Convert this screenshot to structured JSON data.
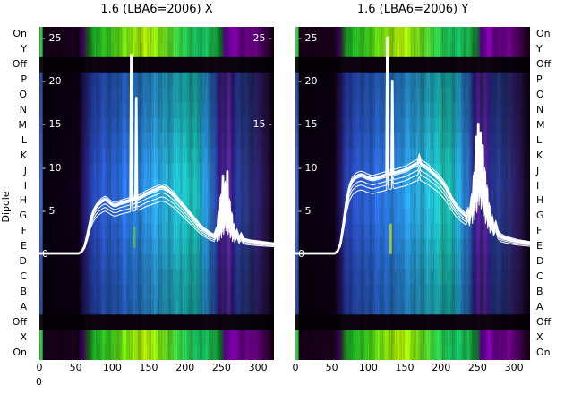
{
  "labels": {
    "ylabel": "Dipole",
    "extra_zero": "0"
  },
  "chart_style": {
    "curve_color": "#ffffff",
    "background": "#ffffff",
    "palettes": {
      "bright": [
        [
          0.0,
          "#30b840"
        ],
        [
          0.01,
          "#30b840"
        ],
        [
          0.014,
          "#140016"
        ],
        [
          0.165,
          "#17001a"
        ],
        [
          0.185,
          "#3c0060"
        ],
        [
          0.205,
          "#1e6018"
        ],
        [
          0.23,
          "#18a024"
        ],
        [
          0.3,
          "#38c01c"
        ],
        [
          0.38,
          "#78d40c"
        ],
        [
          0.45,
          "#a8e004"
        ],
        [
          0.52,
          "#70d414"
        ],
        [
          0.6,
          "#2cc443"
        ],
        [
          0.68,
          "#14b45c"
        ],
        [
          0.74,
          "#18a040"
        ],
        [
          0.77,
          "#0c7c28"
        ],
        [
          0.79,
          "#4c0078"
        ],
        [
          0.82,
          "#7c00a8"
        ],
        [
          0.86,
          "#580074"
        ],
        [
          0.905,
          "#6c0088"
        ],
        [
          0.95,
          "#40004e"
        ],
        [
          1.0,
          "#12000e"
        ]
      ],
      "dipole": [
        [
          0.0,
          "#3858b0"
        ],
        [
          0.01,
          "#3858b0"
        ],
        [
          0.014,
          "#08000c"
        ],
        [
          0.165,
          "#0c0014"
        ],
        [
          0.185,
          "#241058"
        ],
        [
          0.21,
          "#2438a0"
        ],
        [
          0.28,
          "#2858c4"
        ],
        [
          0.36,
          "#2868d0"
        ],
        [
          0.44,
          "#2884d4"
        ],
        [
          0.52,
          "#28a0d0"
        ],
        [
          0.6,
          "#1cb4bc"
        ],
        [
          0.66,
          "#18b4a8"
        ],
        [
          0.7,
          "#2090c4"
        ],
        [
          0.74,
          "#2858ac"
        ],
        [
          0.762,
          "#282488"
        ],
        [
          0.778,
          "#5c1c9c"
        ],
        [
          0.792,
          "#28206c"
        ],
        [
          0.806,
          "#6c24a8"
        ],
        [
          0.822,
          "#241c74"
        ],
        [
          0.85,
          "#283c94"
        ],
        [
          0.9,
          "#242c70"
        ],
        [
          0.945,
          "#2a1656"
        ],
        [
          0.975,
          "#1c0a2e"
        ],
        [
          1.0,
          "#0a0010"
        ]
      ],
      "off": [
        [
          0.0,
          "#101014"
        ],
        [
          0.01,
          "#101014"
        ],
        [
          0.014,
          "#030003"
        ],
        [
          0.18,
          "#050006"
        ],
        [
          0.2,
          "#0c0410"
        ],
        [
          0.5,
          "#0a020c"
        ],
        [
          0.8,
          "#0c0410"
        ],
        [
          1.0,
          "#040004"
        ]
      ]
    }
  },
  "chart_data": [
    {
      "type": "heatmap",
      "title": "1.6 (LBA6=2006) X",
      "x_ticks": [
        0,
        50,
        100,
        150,
        200,
        250,
        300
      ],
      "x_range": [
        0,
        322
      ],
      "curve_scale_range": [
        0,
        25
      ],
      "rows": [
        "On",
        "Y",
        "Off",
        "P",
        "O",
        "N",
        "M",
        "L",
        "K",
        "J",
        "I",
        "H",
        "G",
        "F",
        "E",
        "D",
        "C",
        "B",
        "A",
        "Off",
        "X",
        "On"
      ],
      "row_types": [
        "bright",
        "bright",
        "off",
        "dipole",
        "dipole",
        "dipole",
        "dipole",
        "dipole",
        "dipole",
        "dipole",
        "dipole",
        "dipole",
        "dipole",
        "dipole",
        "dipole",
        "dipole",
        "dipole",
        "dipole",
        "dipole",
        "off",
        "bright",
        "bright"
      ],
      "y_inner_ticks": {
        "left": [
          {
            "v": 25,
            "t": "- 25"
          },
          {
            "v": 20,
            "t": "- 20"
          },
          {
            "v": 15,
            "t": "- 15"
          },
          {
            "v": 10,
            "t": "- 10"
          },
          {
            "v": 5,
            "t": "- 5"
          },
          {
            "v": 0,
            "t": "0"
          }
        ],
        "right": [
          {
            "v": 25,
            "t": "25 -"
          },
          {
            "v": 15,
            "t": "15 -"
          }
        ]
      },
      "curve": [
        [
          0,
          0
        ],
        [
          54,
          0
        ],
        [
          58,
          0.2
        ],
        [
          62,
          0.8
        ],
        [
          66,
          2.2
        ],
        [
          70,
          3.8
        ],
        [
          74,
          4.8
        ],
        [
          78,
          5.4
        ],
        [
          82,
          5.8
        ],
        [
          86,
          6.1
        ],
        [
          90,
          6.3
        ],
        [
          94,
          6.1
        ],
        [
          98,
          5.8
        ],
        [
          102,
          5.6
        ],
        [
          106,
          5.6
        ],
        [
          110,
          5.8
        ],
        [
          114,
          5.9
        ],
        [
          118,
          6
        ],
        [
          122,
          6.1
        ],
        [
          125,
          6.2
        ],
        [
          126,
          23
        ],
        [
          127,
          8
        ],
        [
          128,
          6.2
        ],
        [
          130,
          6.3
        ],
        [
          132,
          6.4
        ],
        [
          133,
          18
        ],
        [
          134,
          6.5
        ],
        [
          136,
          6.4
        ],
        [
          140,
          6.6
        ],
        [
          144,
          6.8
        ],
        [
          148,
          7
        ],
        [
          152,
          7.1
        ],
        [
          156,
          7.3
        ],
        [
          160,
          7.4
        ],
        [
          164,
          7.6
        ],
        [
          168,
          7.7
        ],
        [
          172,
          7.6
        ],
        [
          176,
          7.4
        ],
        [
          180,
          7.1
        ],
        [
          184,
          6.8
        ],
        [
          188,
          6.4
        ],
        [
          192,
          6
        ],
        [
          196,
          5.6
        ],
        [
          200,
          5.2
        ],
        [
          205,
          4.7
        ],
        [
          210,
          4.2
        ],
        [
          215,
          3.7
        ],
        [
          220,
          3.2
        ],
        [
          225,
          2.8
        ],
        [
          230,
          2.5
        ],
        [
          235,
          2.2
        ],
        [
          240,
          2
        ],
        [
          243,
          2.8
        ],
        [
          244,
          2
        ],
        [
          246,
          4.5
        ],
        [
          247,
          2.2
        ],
        [
          249,
          6.5
        ],
        [
          250,
          2.5
        ],
        [
          252,
          9
        ],
        [
          253,
          3
        ],
        [
          255,
          8
        ],
        [
          256,
          3.5
        ],
        [
          258,
          9.5
        ],
        [
          259,
          3
        ],
        [
          261,
          6
        ],
        [
          262,
          2.5
        ],
        [
          264,
          4.5
        ],
        [
          265,
          2
        ],
        [
          267,
          3.2
        ],
        [
          268,
          1.8
        ],
        [
          271,
          2.6
        ],
        [
          274,
          1.7
        ],
        [
          277,
          2.2
        ],
        [
          280,
          1.6
        ],
        [
          284,
          1.5
        ],
        [
          290,
          1.4
        ],
        [
          300,
          1.3
        ],
        [
          310,
          1.2
        ],
        [
          322,
          1.1
        ]
      ],
      "band": {
        "cap": 8,
        "attenuation": 0.12,
        "scales": [
          0.82,
          0.87,
          0.92,
          0.96,
          1.0,
          1.02
        ],
        "shifts": [
          -0.25,
          -0.15,
          -0.05,
          0.05,
          0.12,
          0.2
        ]
      },
      "overlays": [
        {
          "x0": 129,
          "x1": 132,
          "r0": 13.2,
          "r1": 14.6,
          "color": "#55c23c",
          "alpha": 0.9
        }
      ]
    },
    {
      "type": "heatmap",
      "title": "1.6 (LBA6=2006) Y",
      "x_ticks": [
        0,
        50,
        100,
        150,
        200,
        250,
        300
      ],
      "x_range": [
        0,
        322
      ],
      "curve_scale_range": [
        0,
        25
      ],
      "rows": [
        "On",
        "Y",
        "Off",
        "P",
        "O",
        "N",
        "M",
        "L",
        "K",
        "J",
        "I",
        "H",
        "G",
        "F",
        "E",
        "D",
        "C",
        "B",
        "A",
        "Off",
        "X",
        "On"
      ],
      "row_types": [
        "bright",
        "bright",
        "off",
        "dipole",
        "dipole",
        "dipole",
        "dipole",
        "dipole",
        "dipole",
        "dipole",
        "dipole",
        "dipole",
        "dipole",
        "dipole",
        "dipole",
        "dipole",
        "dipole",
        "dipole",
        "dipole",
        "off",
        "bright",
        "bright"
      ],
      "y_inner_ticks": {
        "left": [
          {
            "v": 25,
            "t": "- 25"
          },
          {
            "v": 20,
            "t": "- 20"
          },
          {
            "v": 15,
            "t": "- 15"
          },
          {
            "v": 10,
            "t": "- 10"
          },
          {
            "v": 5,
            "t": "- 5"
          },
          {
            "v": 0,
            "t": "0"
          }
        ],
        "right": []
      },
      "curve": [
        [
          0,
          0
        ],
        [
          54,
          0
        ],
        [
          58,
          0.3
        ],
        [
          62,
          1.2
        ],
        [
          66,
          3.5
        ],
        [
          70,
          6
        ],
        [
          74,
          7.6
        ],
        [
          78,
          8.4
        ],
        [
          82,
          8.8
        ],
        [
          86,
          9
        ],
        [
          90,
          9.1
        ],
        [
          94,
          9
        ],
        [
          98,
          8.8
        ],
        [
          102,
          8.7
        ],
        [
          106,
          8.6
        ],
        [
          110,
          8.7
        ],
        [
          114,
          8.8
        ],
        [
          118,
          8.9
        ],
        [
          122,
          9
        ],
        [
          125,
          9.1
        ],
        [
          126,
          25
        ],
        [
          127,
          10
        ],
        [
          128,
          9.2
        ],
        [
          130,
          9.2
        ],
        [
          132,
          9.3
        ],
        [
          133,
          20
        ],
        [
          134,
          9.5
        ],
        [
          136,
          9.3
        ],
        [
          140,
          9.4
        ],
        [
          144,
          9.5
        ],
        [
          148,
          9.6
        ],
        [
          152,
          9.7
        ],
        [
          156,
          9.9
        ],
        [
          160,
          10.1
        ],
        [
          164,
          10.3
        ],
        [
          168,
          10.4
        ],
        [
          170,
          11.2
        ],
        [
          172,
          10.4
        ],
        [
          176,
          10.2
        ],
        [
          180,
          10
        ],
        [
          184,
          9.7
        ],
        [
          188,
          9.4
        ],
        [
          192,
          9.1
        ],
        [
          196,
          8.8
        ],
        [
          200,
          8.4
        ],
        [
          205,
          7.8
        ],
        [
          210,
          7
        ],
        [
          215,
          6.2
        ],
        [
          220,
          5.5
        ],
        [
          225,
          5
        ],
        [
          230,
          4.6
        ],
        [
          234,
          4.3
        ],
        [
          237,
          5
        ],
        [
          239,
          4.2
        ],
        [
          242,
          6.5
        ],
        [
          243,
          4.5
        ],
        [
          245,
          9
        ],
        [
          246,
          5
        ],
        [
          248,
          13.5
        ],
        [
          249,
          6
        ],
        [
          251,
          15
        ],
        [
          252,
          7
        ],
        [
          254,
          14
        ],
        [
          255,
          6.5
        ],
        [
          257,
          12.5
        ],
        [
          258,
          5.5
        ],
        [
          260,
          9.5
        ],
        [
          261,
          4.5
        ],
        [
          263,
          7.5
        ],
        [
          264,
          3.8
        ],
        [
          266,
          5.5
        ],
        [
          267,
          3.2
        ],
        [
          270,
          4.2
        ],
        [
          272,
          2.8
        ],
        [
          275,
          3.5
        ],
        [
          278,
          2.4
        ],
        [
          282,
          2
        ],
        [
          287,
          1.8
        ],
        [
          295,
          1.6
        ],
        [
          305,
          1.4
        ],
        [
          322,
          1.2
        ]
      ],
      "band": {
        "cap": 11,
        "attenuation": 0.3,
        "scales": [
          0.84,
          0.89,
          0.93,
          0.97,
          1.0,
          1.02
        ],
        "shifts": [
          -0.3,
          -0.18,
          -0.08,
          0.05,
          0.15,
          0.25
        ]
      },
      "overlays": [
        {
          "x0": 129,
          "x1": 132.5,
          "r0": 13,
          "r1": 15,
          "color": "#aace2e",
          "alpha": 0.9
        },
        {
          "x0": 199,
          "x1": 201.5,
          "r0": 4,
          "r1": 17,
          "color": "#2db04a",
          "alpha": 0.4
        }
      ]
    }
  ]
}
